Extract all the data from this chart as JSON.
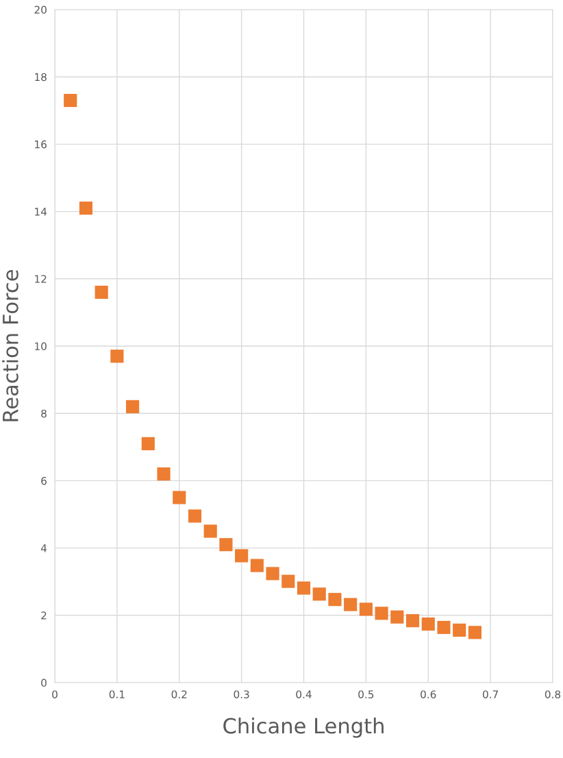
{
  "chart_data": {
    "type": "scatter",
    "xlabel": "Chicane Length",
    "ylabel": "Reaction Force",
    "x": [
      0.025,
      0.05,
      0.075,
      0.1,
      0.125,
      0.15,
      0.175,
      0.2,
      0.225,
      0.25,
      0.275,
      0.3,
      0.325,
      0.35,
      0.375,
      0.4,
      0.425,
      0.45,
      0.475,
      0.5,
      0.525,
      0.55,
      0.575,
      0.6,
      0.625,
      0.65,
      0.675
    ],
    "series": [
      {
        "color": "#ed7d31",
        "values": [
          17.3,
          14.1,
          11.6,
          9.7,
          8.2,
          7.1,
          6.2,
          5.5,
          4.95,
          4.5,
          4.1,
          3.77,
          3.48,
          3.24,
          3.01,
          2.81,
          2.63,
          2.47,
          2.32,
          2.18,
          2.06,
          1.95,
          1.84,
          1.74,
          1.64,
          1.56,
          1.49
        ]
      }
    ],
    "xlim": [
      0,
      0.8
    ],
    "xticks": [
      0,
      0.1,
      0.2,
      0.3,
      0.4,
      0.5,
      0.6,
      0.7,
      0.8
    ],
    "ylim": [
      0,
      20
    ],
    "yticks": [
      0,
      2,
      4,
      6,
      8,
      10,
      12,
      14,
      16,
      18,
      20
    ],
    "grid": true,
    "marker": "square",
    "legend": false
  }
}
